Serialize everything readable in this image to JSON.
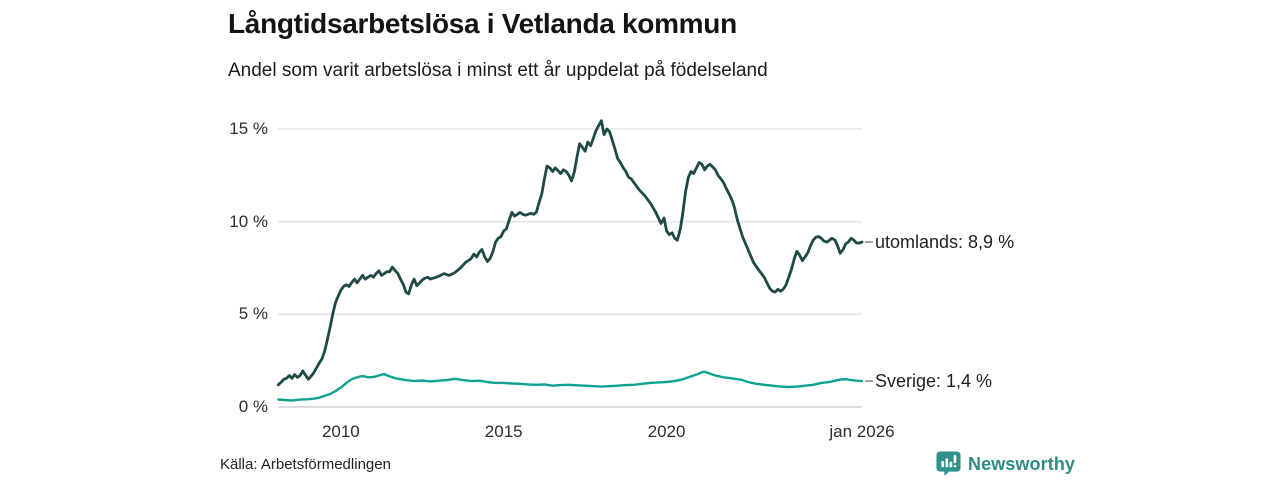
{
  "title": "Långtidsarbetslösa i Vetlanda kommun",
  "subtitle": "Andel som varit arbetslösa i minst ett år uppdelat på födelseland",
  "source": "Källa: Arbetsförmedlingen",
  "logo": {
    "name": "Newsworthy",
    "color": "#31908a"
  },
  "chart_data": {
    "type": "line",
    "title": "Långtidsarbetslösa i Vetlanda kommun",
    "subtitle": "Andel som varit arbetslösa i minst ett år uppdelat på födelseland",
    "xlabel": "",
    "ylabel": "",
    "grid": true,
    "legend_position": "end-of-line",
    "x_range_years": [
      2008.07,
      2026.0
    ],
    "ylim": [
      0,
      15.5
    ],
    "y_ticks": [
      {
        "label": "0 %",
        "value": 0
      },
      {
        "label": "5 %",
        "value": 5
      },
      {
        "label": "10 %",
        "value": 10
      },
      {
        "label": "15 %",
        "value": 15
      }
    ],
    "x_ticks": [
      {
        "label": "2010",
        "value": 2010
      },
      {
        "label": "2015",
        "value": 2015
      },
      {
        "label": "2020",
        "value": 2020
      },
      {
        "label": "jan 2026",
        "value": 2026
      }
    ],
    "series": [
      {
        "name": "utomlands",
        "end_label": "utomlands: 8,9 %",
        "last_value_text": "8,9 %",
        "color": "#1d4a43",
        "stroke_width": 2.8,
        "points": [
          [
            2008.08,
            1.2
          ],
          [
            2008.17,
            1.35
          ],
          [
            2008.25,
            1.5
          ],
          [
            2008.33,
            1.55
          ],
          [
            2008.42,
            1.7
          ],
          [
            2008.5,
            1.55
          ],
          [
            2008.58,
            1.75
          ],
          [
            2008.67,
            1.6
          ],
          [
            2008.75,
            1.7
          ],
          [
            2008.83,
            1.95
          ],
          [
            2008.92,
            1.7
          ],
          [
            2009.0,
            1.5
          ],
          [
            2009.08,
            1.65
          ],
          [
            2009.17,
            1.85
          ],
          [
            2009.25,
            2.1
          ],
          [
            2009.33,
            2.35
          ],
          [
            2009.42,
            2.6
          ],
          [
            2009.5,
            3.0
          ],
          [
            2009.58,
            3.6
          ],
          [
            2009.67,
            4.3
          ],
          [
            2009.75,
            5.0
          ],
          [
            2009.83,
            5.6
          ],
          [
            2009.92,
            6.0
          ],
          [
            2010.0,
            6.3
          ],
          [
            2010.08,
            6.5
          ],
          [
            2010.17,
            6.6
          ],
          [
            2010.25,
            6.5
          ],
          [
            2010.33,
            6.7
          ],
          [
            2010.42,
            6.9
          ],
          [
            2010.5,
            6.7
          ],
          [
            2010.58,
            6.9
          ],
          [
            2010.67,
            7.1
          ],
          [
            2010.75,
            6.9
          ],
          [
            2010.83,
            7.0
          ],
          [
            2010.92,
            7.1
          ],
          [
            2011.0,
            7.0
          ],
          [
            2011.08,
            7.2
          ],
          [
            2011.17,
            7.35
          ],
          [
            2011.25,
            7.1
          ],
          [
            2011.33,
            7.2
          ],
          [
            2011.42,
            7.3
          ],
          [
            2011.5,
            7.3
          ],
          [
            2011.58,
            7.55
          ],
          [
            2011.67,
            7.35
          ],
          [
            2011.75,
            7.2
          ],
          [
            2011.83,
            6.9
          ],
          [
            2011.92,
            6.6
          ],
          [
            2012.0,
            6.2
          ],
          [
            2012.08,
            6.1
          ],
          [
            2012.17,
            6.6
          ],
          [
            2012.25,
            6.9
          ],
          [
            2012.33,
            6.55
          ],
          [
            2012.42,
            6.7
          ],
          [
            2012.5,
            6.85
          ],
          [
            2012.58,
            6.95
          ],
          [
            2012.67,
            7.0
          ],
          [
            2012.75,
            6.9
          ],
          [
            2012.83,
            6.95
          ],
          [
            2012.92,
            7.0
          ],
          [
            2013.0,
            7.05
          ],
          [
            2013.17,
            7.2
          ],
          [
            2013.33,
            7.1
          ],
          [
            2013.5,
            7.25
          ],
          [
            2013.67,
            7.5
          ],
          [
            2013.83,
            7.8
          ],
          [
            2014.0,
            8.0
          ],
          [
            2014.08,
            8.25
          ],
          [
            2014.17,
            8.1
          ],
          [
            2014.25,
            8.35
          ],
          [
            2014.33,
            8.5
          ],
          [
            2014.42,
            8.1
          ],
          [
            2014.5,
            7.85
          ],
          [
            2014.58,
            8.0
          ],
          [
            2014.67,
            8.4
          ],
          [
            2014.75,
            8.9
          ],
          [
            2014.83,
            9.1
          ],
          [
            2014.92,
            9.2
          ],
          [
            2015.0,
            9.5
          ],
          [
            2015.08,
            9.6
          ],
          [
            2015.17,
            10.1
          ],
          [
            2015.25,
            10.5
          ],
          [
            2015.33,
            10.3
          ],
          [
            2015.42,
            10.4
          ],
          [
            2015.5,
            10.5
          ],
          [
            2015.58,
            10.4
          ],
          [
            2015.67,
            10.35
          ],
          [
            2015.75,
            10.4
          ],
          [
            2015.83,
            10.45
          ],
          [
            2015.92,
            10.4
          ],
          [
            2016.0,
            10.5
          ],
          [
            2016.08,
            11.0
          ],
          [
            2016.17,
            11.5
          ],
          [
            2016.25,
            12.3
          ],
          [
            2016.33,
            13.0
          ],
          [
            2016.42,
            12.9
          ],
          [
            2016.5,
            12.7
          ],
          [
            2016.58,
            12.9
          ],
          [
            2016.67,
            12.75
          ],
          [
            2016.75,
            12.6
          ],
          [
            2016.83,
            12.8
          ],
          [
            2016.92,
            12.7
          ],
          [
            2017.0,
            12.5
          ],
          [
            2017.08,
            12.2
          ],
          [
            2017.17,
            12.7
          ],
          [
            2017.25,
            13.5
          ],
          [
            2017.33,
            14.2
          ],
          [
            2017.42,
            14.0
          ],
          [
            2017.5,
            13.8
          ],
          [
            2017.58,
            14.3
          ],
          [
            2017.67,
            14.1
          ],
          [
            2017.75,
            14.5
          ],
          [
            2017.83,
            14.9
          ],
          [
            2017.92,
            15.2
          ],
          [
            2018.0,
            15.45
          ],
          [
            2018.08,
            14.7
          ],
          [
            2018.17,
            15.0
          ],
          [
            2018.25,
            14.85
          ],
          [
            2018.33,
            14.4
          ],
          [
            2018.42,
            13.9
          ],
          [
            2018.5,
            13.4
          ],
          [
            2018.58,
            13.2
          ],
          [
            2018.67,
            12.9
          ],
          [
            2018.75,
            12.7
          ],
          [
            2018.83,
            12.4
          ],
          [
            2018.92,
            12.3
          ],
          [
            2019.0,
            12.1
          ],
          [
            2019.17,
            11.7
          ],
          [
            2019.33,
            11.4
          ],
          [
            2019.5,
            11.0
          ],
          [
            2019.67,
            10.5
          ],
          [
            2019.75,
            10.2
          ],
          [
            2019.83,
            9.9
          ],
          [
            2019.92,
            10.2
          ],
          [
            2020.0,
            9.5
          ],
          [
            2020.08,
            9.3
          ],
          [
            2020.17,
            9.4
          ],
          [
            2020.25,
            9.1
          ],
          [
            2020.33,
            9.0
          ],
          [
            2020.42,
            9.6
          ],
          [
            2020.5,
            10.5
          ],
          [
            2020.58,
            11.6
          ],
          [
            2020.67,
            12.4
          ],
          [
            2020.75,
            12.7
          ],
          [
            2020.83,
            12.6
          ],
          [
            2020.92,
            12.9
          ],
          [
            2021.0,
            13.2
          ],
          [
            2021.08,
            13.1
          ],
          [
            2021.17,
            12.8
          ],
          [
            2021.25,
            13.0
          ],
          [
            2021.33,
            13.1
          ],
          [
            2021.42,
            12.95
          ],
          [
            2021.5,
            12.8
          ],
          [
            2021.58,
            12.5
          ],
          [
            2021.67,
            12.3
          ],
          [
            2021.75,
            12.1
          ],
          [
            2021.83,
            11.8
          ],
          [
            2021.92,
            11.5
          ],
          [
            2022.0,
            11.2
          ],
          [
            2022.08,
            10.8
          ],
          [
            2022.17,
            10.1
          ],
          [
            2022.33,
            9.2
          ],
          [
            2022.5,
            8.5
          ],
          [
            2022.67,
            7.8
          ],
          [
            2022.83,
            7.4
          ],
          [
            2023.0,
            7.0
          ],
          [
            2023.08,
            6.7
          ],
          [
            2023.17,
            6.4
          ],
          [
            2023.25,
            6.25
          ],
          [
            2023.33,
            6.2
          ],
          [
            2023.42,
            6.35
          ],
          [
            2023.5,
            6.25
          ],
          [
            2023.58,
            6.35
          ],
          [
            2023.67,
            6.6
          ],
          [
            2023.75,
            7.0
          ],
          [
            2023.83,
            7.4
          ],
          [
            2023.92,
            8.0
          ],
          [
            2024.0,
            8.4
          ],
          [
            2024.08,
            8.2
          ],
          [
            2024.17,
            7.9
          ],
          [
            2024.25,
            8.1
          ],
          [
            2024.33,
            8.3
          ],
          [
            2024.42,
            8.7
          ],
          [
            2024.5,
            9.0
          ],
          [
            2024.58,
            9.15
          ],
          [
            2024.67,
            9.2
          ],
          [
            2024.75,
            9.1
          ],
          [
            2024.83,
            8.95
          ],
          [
            2024.92,
            8.9
          ],
          [
            2025.0,
            9.0
          ],
          [
            2025.08,
            9.1
          ],
          [
            2025.17,
            9.0
          ],
          [
            2025.25,
            8.7
          ],
          [
            2025.33,
            8.3
          ],
          [
            2025.42,
            8.5
          ],
          [
            2025.5,
            8.8
          ],
          [
            2025.58,
            8.9
          ],
          [
            2025.67,
            9.1
          ],
          [
            2025.75,
            9.0
          ],
          [
            2025.83,
            8.85
          ],
          [
            2025.92,
            8.85
          ],
          [
            2026.0,
            8.9
          ]
        ]
      },
      {
        "name": "Sverige",
        "end_label": "Sverige: 1,4 %",
        "last_value_text": "1,4 %",
        "color": "#0fa292",
        "stroke_width": 2.4,
        "points": [
          [
            2008.08,
            0.4
          ],
          [
            2008.25,
            0.38
          ],
          [
            2008.5,
            0.35
          ],
          [
            2008.75,
            0.4
          ],
          [
            2009.0,
            0.42
          ],
          [
            2009.17,
            0.45
          ],
          [
            2009.33,
            0.5
          ],
          [
            2009.5,
            0.6
          ],
          [
            2009.67,
            0.7
          ],
          [
            2009.83,
            0.85
          ],
          [
            2010.0,
            1.05
          ],
          [
            2010.17,
            1.3
          ],
          [
            2010.33,
            1.5
          ],
          [
            2010.5,
            1.6
          ],
          [
            2010.67,
            1.68
          ],
          [
            2010.83,
            1.6
          ],
          [
            2011.0,
            1.62
          ],
          [
            2011.17,
            1.7
          ],
          [
            2011.33,
            1.78
          ],
          [
            2011.42,
            1.7
          ],
          [
            2011.5,
            1.65
          ],
          [
            2011.67,
            1.55
          ],
          [
            2011.83,
            1.5
          ],
          [
            2012.0,
            1.45
          ],
          [
            2012.25,
            1.4
          ],
          [
            2012.5,
            1.43
          ],
          [
            2012.75,
            1.38
          ],
          [
            2013.0,
            1.42
          ],
          [
            2013.25,
            1.45
          ],
          [
            2013.5,
            1.52
          ],
          [
            2013.75,
            1.45
          ],
          [
            2014.0,
            1.4
          ],
          [
            2014.25,
            1.42
          ],
          [
            2014.5,
            1.35
          ],
          [
            2014.75,
            1.3
          ],
          [
            2015.0,
            1.3
          ],
          [
            2015.25,
            1.27
          ],
          [
            2015.5,
            1.25
          ],
          [
            2015.75,
            1.22
          ],
          [
            2016.0,
            1.2
          ],
          [
            2016.25,
            1.22
          ],
          [
            2016.5,
            1.15
          ],
          [
            2016.75,
            1.18
          ],
          [
            2017.0,
            1.2
          ],
          [
            2017.25,
            1.17
          ],
          [
            2017.5,
            1.15
          ],
          [
            2017.75,
            1.12
          ],
          [
            2018.0,
            1.1
          ],
          [
            2018.25,
            1.12
          ],
          [
            2018.5,
            1.15
          ],
          [
            2018.75,
            1.18
          ],
          [
            2019.0,
            1.2
          ],
          [
            2019.25,
            1.25
          ],
          [
            2019.5,
            1.3
          ],
          [
            2019.75,
            1.33
          ],
          [
            2020.0,
            1.35
          ],
          [
            2020.25,
            1.4
          ],
          [
            2020.5,
            1.5
          ],
          [
            2020.75,
            1.65
          ],
          [
            2021.0,
            1.8
          ],
          [
            2021.08,
            1.88
          ],
          [
            2021.17,
            1.9
          ],
          [
            2021.33,
            1.8
          ],
          [
            2021.5,
            1.7
          ],
          [
            2021.75,
            1.6
          ],
          [
            2022.0,
            1.55
          ],
          [
            2022.17,
            1.5
          ],
          [
            2022.33,
            1.45
          ],
          [
            2022.5,
            1.35
          ],
          [
            2022.75,
            1.25
          ],
          [
            2023.0,
            1.2
          ],
          [
            2023.25,
            1.15
          ],
          [
            2023.5,
            1.1
          ],
          [
            2023.75,
            1.08
          ],
          [
            2024.0,
            1.1
          ],
          [
            2024.25,
            1.15
          ],
          [
            2024.5,
            1.2
          ],
          [
            2024.75,
            1.3
          ],
          [
            2025.0,
            1.35
          ],
          [
            2025.17,
            1.42
          ],
          [
            2025.33,
            1.48
          ],
          [
            2025.5,
            1.5
          ],
          [
            2025.67,
            1.45
          ],
          [
            2025.83,
            1.42
          ],
          [
            2026.0,
            1.4
          ]
        ]
      }
    ]
  }
}
